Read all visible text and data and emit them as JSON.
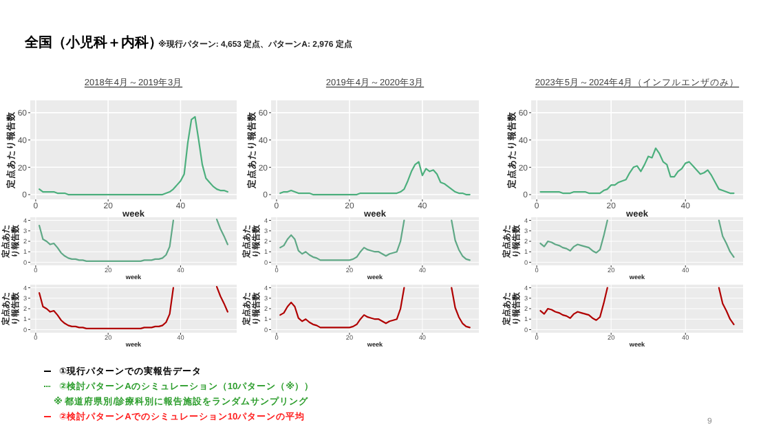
{
  "chart_data": [
    {
      "type": "other",
      "title": "全国（小児科＋内科）",
      "subtitle": "※現行パターン: 4,653 定点、パターンA: 2,976 定点"
    },
    {
      "type": "line",
      "title": "2018年4月～2019年3月",
      "xlabel": "week",
      "ylabel": "定点あたり報告数",
      "xlim": [
        -1.5,
        55.5
      ],
      "xticks": [
        0,
        20,
        40
      ],
      "ylim": [
        -3.5,
        69
      ],
      "yticks": [
        0,
        20,
        40,
        60
      ],
      "grid": true,
      "x": [
        1,
        2,
        3,
        4,
        5,
        6,
        7,
        8,
        9,
        10,
        11,
        12,
        13,
        14,
        15,
        16,
        17,
        18,
        19,
        20,
        21,
        22,
        23,
        24,
        25,
        26,
        27,
        28,
        29,
        30,
        31,
        32,
        33,
        34,
        35,
        36,
        37,
        38,
        39,
        40,
        41,
        42,
        43,
        44,
        45,
        46,
        47,
        48,
        49,
        50,
        51,
        52,
        53
      ],
      "series": [
        {
          "color": "#4caf7d",
          "values": [
            4,
            2,
            2,
            2,
            2,
            1,
            1,
            1,
            0,
            0,
            0,
            0,
            0,
            0,
            0,
            0,
            0,
            0,
            0,
            0,
            0,
            0,
            0,
            0,
            0,
            0,
            0,
            0,
            0,
            0,
            0,
            0,
            0,
            0,
            0,
            1,
            2,
            4,
            7,
            10,
            15,
            38,
            55,
            57,
            40,
            22,
            12,
            9,
            6,
            4,
            3,
            3,
            2
          ]
        }
      ]
    },
    {
      "type": "line",
      "title": "2019年4月～2020年3月",
      "xlabel": "week",
      "ylabel": "定点あたり報告数",
      "xlim": [
        -1.5,
        55.5
      ],
      "xticks": [
        0,
        20,
        40
      ],
      "ylim": [
        -3.5,
        69
      ],
      "yticks": [
        0,
        20,
        40,
        60
      ],
      "grid": true,
      "x": [
        1,
        2,
        3,
        4,
        5,
        6,
        7,
        8,
        9,
        10,
        11,
        12,
        13,
        14,
        15,
        16,
        17,
        18,
        19,
        20,
        21,
        22,
        23,
        24,
        25,
        26,
        27,
        28,
        29,
        30,
        31,
        32,
        33,
        34,
        35,
        36,
        37,
        38,
        39,
        40,
        41,
        42,
        43,
        44,
        45,
        46,
        47,
        48,
        49,
        50,
        51,
        52,
        53
      ],
      "series": [
        {
          "color": "#4caf7d",
          "values": [
            1,
            2,
            2,
            3,
            2,
            1,
            1,
            1,
            1,
            0,
            0,
            0,
            0,
            0,
            0,
            0,
            0,
            0,
            0,
            0,
            0,
            0,
            1,
            1,
            1,
            1,
            1,
            1,
            1,
            1,
            1,
            1,
            1,
            2,
            4,
            10,
            17,
            22,
            24,
            14,
            19,
            17,
            18,
            15,
            9,
            8,
            6,
            4,
            2,
            1,
            1,
            0,
            0
          ]
        }
      ]
    },
    {
      "type": "line",
      "title": "2023年5月～2024年4月（インフルエンザのみ）",
      "xlabel": "week",
      "ylabel": "定点あたり報告数",
      "xlim": [
        -1.5,
        55.5
      ],
      "xticks": [
        0,
        20,
        40
      ],
      "ylim": [
        -3.5,
        69
      ],
      "yticks": [
        0,
        20,
        40,
        60
      ],
      "grid": true,
      "x": [
        1,
        2,
        3,
        4,
        5,
        6,
        7,
        8,
        9,
        10,
        11,
        12,
        13,
        14,
        15,
        16,
        17,
        18,
        19,
        20,
        21,
        22,
        23,
        24,
        25,
        26,
        27,
        28,
        29,
        30,
        31,
        32,
        33,
        34,
        35,
        36,
        37,
        38,
        39,
        40,
        41,
        42,
        43,
        44,
        45,
        46,
        47,
        48,
        49,
        50,
        51,
        52,
        53
      ],
      "series": [
        {
          "color": "#4caf7d",
          "values": [
            2,
            2,
            2,
            2,
            2,
            2,
            1,
            1,
            1,
            2,
            2,
            2,
            2,
            1,
            1,
            1,
            1,
            3,
            4,
            7,
            7,
            9,
            10,
            11,
            16,
            20,
            21,
            17,
            22,
            28,
            27,
            34,
            30,
            24,
            22,
            13,
            13,
            17,
            19,
            23,
            24,
            21,
            18,
            15,
            16,
            18,
            14,
            9,
            4,
            3,
            2,
            1,
            1
          ]
        }
      ]
    },
    {
      "type": "line",
      "xlabel": "week",
      "ylabel": "定点あたり報告数",
      "xlim": [
        -1.5,
        55.5
      ],
      "xticks": [
        0,
        20,
        40
      ],
      "ylim": [
        -0.3,
        4.3
      ],
      "yticks": [
        0,
        1,
        2,
        3,
        4
      ],
      "grid": true,
      "x": [
        1,
        2,
        3,
        4,
        5,
        6,
        7,
        8,
        9,
        10,
        11,
        12,
        13,
        14,
        15,
        16,
        17,
        18,
        19,
        20,
        21,
        22,
        23,
        24,
        25,
        26,
        27,
        28,
        29,
        30,
        31,
        32,
        33,
        34,
        35,
        36,
        37,
        38,
        39,
        40,
        41,
        42,
        43,
        44,
        45,
        46,
        47,
        48,
        49,
        50,
        51,
        52,
        53
      ],
      "series": [
        {
          "color": "#5fa886",
          "values": [
            3.5,
            2.2,
            2.0,
            1.7,
            1.8,
            1.4,
            0.9,
            0.6,
            0.4,
            0.3,
            0.3,
            0.2,
            0.2,
            0.1,
            0.1,
            0.1,
            0.1,
            0.1,
            0.1,
            0.1,
            0.1,
            0.1,
            0.1,
            0.1,
            0.1,
            0.1,
            0.1,
            0.1,
            0.1,
            0.2,
            0.2,
            0.2,
            0.3,
            0.3,
            0.4,
            0.7,
            1.5,
            4,
            null,
            null,
            null,
            null,
            null,
            null,
            null,
            null,
            null,
            null,
            null,
            4.1,
            3.2,
            2.5,
            1.7
          ]
        }
      ]
    },
    {
      "type": "line",
      "xlabel": "week",
      "ylabel": "定点あたり報告数",
      "xlim": [
        -1.5,
        55.5
      ],
      "xticks": [
        0,
        20,
        40
      ],
      "ylim": [
        -0.3,
        4.3
      ],
      "yticks": [
        0,
        1,
        2,
        3,
        4
      ],
      "grid": true,
      "x": [
        1,
        2,
        3,
        4,
        5,
        6,
        7,
        8,
        9,
        10,
        11,
        12,
        13,
        14,
        15,
        16,
        17,
        18,
        19,
        20,
        21,
        22,
        23,
        24,
        25,
        26,
        27,
        28,
        29,
        30,
        31,
        32,
        33,
        34,
        35,
        36,
        37,
        38,
        39,
        40,
        41,
        42,
        43,
        44,
        45,
        46,
        47,
        48,
        49,
        50,
        51,
        52,
        53
      ],
      "series": [
        {
          "color": "#5fa886",
          "values": [
            1.4,
            1.6,
            2.2,
            2.6,
            2.2,
            1.1,
            0.8,
            1.0,
            0.7,
            0.5,
            0.4,
            0.2,
            0.2,
            0.2,
            0.2,
            0.2,
            0.2,
            0.2,
            0.2,
            0.2,
            0.3,
            0.5,
            1.0,
            1.4,
            1.2,
            1.1,
            1.0,
            1.0,
            0.8,
            0.6,
            0.8,
            0.9,
            1.0,
            2.0,
            4.0,
            null,
            null,
            null,
            null,
            null,
            null,
            null,
            null,
            null,
            null,
            null,
            null,
            4,
            2.1,
            1.2,
            0.6,
            0.3,
            0.2
          ]
        }
      ]
    },
    {
      "type": "line",
      "xlabel": "week",
      "ylabel": "定点あたり報告数",
      "xlim": [
        -1.5,
        55.5
      ],
      "xticks": [
        0,
        20,
        40
      ],
      "ylim": [
        -0.3,
        4.3
      ],
      "yticks": [
        0,
        1,
        2,
        3,
        4
      ],
      "grid": true,
      "x": [
        1,
        2,
        3,
        4,
        5,
        6,
        7,
        8,
        9,
        10,
        11,
        12,
        13,
        14,
        15,
        16,
        17,
        18,
        19,
        20,
        21,
        22,
        23,
        24,
        25,
        26,
        27,
        28,
        29,
        30,
        31,
        32,
        33,
        34,
        35,
        36,
        37,
        38,
        39,
        40,
        41,
        42,
        43,
        44,
        45,
        46,
        47,
        48,
        49,
        50,
        51,
        52,
        53
      ],
      "series": [
        {
          "color": "#5fa886",
          "values": [
            1.8,
            1.5,
            2.0,
            1.9,
            1.7,
            1.6,
            1.4,
            1.3,
            1.1,
            1.5,
            1.7,
            1.6,
            1.5,
            1.4,
            1.1,
            0.9,
            1.2,
            2.5,
            4,
            null,
            null,
            null,
            null,
            null,
            null,
            null,
            null,
            null,
            null,
            null,
            null,
            null,
            null,
            null,
            null,
            null,
            null,
            null,
            null,
            null,
            null,
            null,
            null,
            null,
            null,
            null,
            null,
            null,
            4,
            2.5,
            1.8,
            1.0,
            0.5
          ]
        }
      ]
    },
    {
      "type": "line",
      "xlabel": "week",
      "ylabel": "定点あたり報告数",
      "xlim": [
        -1.5,
        55.5
      ],
      "xticks": [
        0,
        20,
        40
      ],
      "ylim": [
        -0.3,
        4.3
      ],
      "yticks": [
        0,
        1,
        2,
        3,
        4
      ],
      "grid": true,
      "x": [
        1,
        2,
        3,
        4,
        5,
        6,
        7,
        8,
        9,
        10,
        11,
        12,
        13,
        14,
        15,
        16,
        17,
        18,
        19,
        20,
        21,
        22,
        23,
        24,
        25,
        26,
        27,
        28,
        29,
        30,
        31,
        32,
        33,
        34,
        35,
        36,
        37,
        38,
        39,
        40,
        41,
        42,
        43,
        44,
        45,
        46,
        47,
        48,
        49,
        50,
        51,
        52,
        53
      ],
      "series": [
        {
          "color": "#b00000",
          "values": [
            3.5,
            2.2,
            2.0,
            1.7,
            1.8,
            1.4,
            0.9,
            0.6,
            0.4,
            0.3,
            0.3,
            0.2,
            0.2,
            0.1,
            0.1,
            0.1,
            0.1,
            0.1,
            0.1,
            0.1,
            0.1,
            0.1,
            0.1,
            0.1,
            0.1,
            0.1,
            0.1,
            0.1,
            0.1,
            0.2,
            0.2,
            0.2,
            0.3,
            0.3,
            0.4,
            0.7,
            1.5,
            4,
            null,
            null,
            null,
            null,
            null,
            null,
            null,
            null,
            null,
            null,
            null,
            4.1,
            3.2,
            2.5,
            1.7
          ]
        }
      ]
    },
    {
      "type": "line",
      "xlabel": "week",
      "ylabel": "定点あたり報告数",
      "xlim": [
        -1.5,
        55.5
      ],
      "xticks": [
        0,
        20,
        40
      ],
      "ylim": [
        -0.3,
        4.3
      ],
      "yticks": [
        0,
        1,
        2,
        3,
        4
      ],
      "grid": true,
      "x": [
        1,
        2,
        3,
        4,
        5,
        6,
        7,
        8,
        9,
        10,
        11,
        12,
        13,
        14,
        15,
        16,
        17,
        18,
        19,
        20,
        21,
        22,
        23,
        24,
        25,
        26,
        27,
        28,
        29,
        30,
        31,
        32,
        33,
        34,
        35,
        36,
        37,
        38,
        39,
        40,
        41,
        42,
        43,
        44,
        45,
        46,
        47,
        48,
        49,
        50,
        51,
        52,
        53
      ],
      "series": [
        {
          "color": "#b00000",
          "values": [
            1.4,
            1.6,
            2.2,
            2.6,
            2.2,
            1.1,
            0.8,
            1.0,
            0.7,
            0.5,
            0.4,
            0.2,
            0.2,
            0.2,
            0.2,
            0.2,
            0.2,
            0.2,
            0.2,
            0.2,
            0.3,
            0.5,
            1.0,
            1.4,
            1.2,
            1.1,
            1.0,
            1.0,
            0.8,
            0.6,
            0.8,
            0.9,
            1.0,
            2.0,
            4.0,
            null,
            null,
            null,
            null,
            null,
            null,
            null,
            null,
            null,
            null,
            null,
            null,
            4,
            2.1,
            1.2,
            0.6,
            0.3,
            0.2
          ]
        }
      ]
    },
    {
      "type": "line",
      "xlabel": "week",
      "ylabel": "定点あたり報告数",
      "xlim": [
        -1.5,
        55.5
      ],
      "xticks": [
        0,
        20,
        40
      ],
      "ylim": [
        -0.3,
        4.3
      ],
      "yticks": [
        0,
        1,
        2,
        3,
        4
      ],
      "grid": true,
      "x": [
        1,
        2,
        3,
        4,
        5,
        6,
        7,
        8,
        9,
        10,
        11,
        12,
        13,
        14,
        15,
        16,
        17,
        18,
        19,
        20,
        21,
        22,
        23,
        24,
        25,
        26,
        27,
        28,
        29,
        30,
        31,
        32,
        33,
        34,
        35,
        36,
        37,
        38,
        39,
        40,
        41,
        42,
        43,
        44,
        45,
        46,
        47,
        48,
        49,
        50,
        51,
        52,
        53
      ],
      "series": [
        {
          "color": "#b00000",
          "values": [
            1.8,
            1.5,
            2.0,
            1.9,
            1.7,
            1.6,
            1.4,
            1.3,
            1.1,
            1.5,
            1.7,
            1.6,
            1.5,
            1.4,
            1.1,
            0.9,
            1.2,
            2.5,
            4,
            null,
            null,
            null,
            null,
            null,
            null,
            null,
            null,
            null,
            null,
            null,
            null,
            null,
            null,
            null,
            null,
            null,
            null,
            null,
            null,
            null,
            null,
            null,
            null,
            null,
            null,
            null,
            null,
            null,
            4,
            2.5,
            1.8,
            1.0,
            0.5
          ]
        }
      ]
    },
    {
      "type": "other",
      "annotations": [
        "①現行パターンでの実報告データ",
        "②検討パターンAのシミュレーション（10パターン（※））",
        "※ 都道府県別/診療科別に報告施設をランダムサンプリング",
        "②検討パターンAでのシミュレーション10パターンの平均",
        "9"
      ]
    }
  ]
}
